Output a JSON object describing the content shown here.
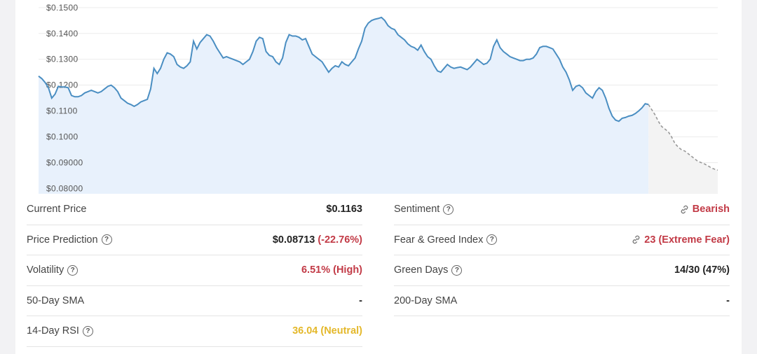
{
  "chart_data": {
    "type": "line",
    "y_ticks": [
      "$0.1500",
      "$0.1400",
      "$0.1300",
      "$0.1200",
      "$0.1100",
      "$0.1000",
      "$0.09000",
      "$0.08000"
    ],
    "ylim": [
      0.0785,
      0.1505
    ],
    "series": [
      {
        "style": "solid",
        "color": "#4a8ec2",
        "values": [
          0.1235,
          0.1225,
          0.121,
          0.119,
          0.115,
          0.1165,
          0.1195,
          0.1193,
          0.1193,
          0.119,
          0.116,
          0.1155,
          0.1155,
          0.116,
          0.117,
          0.1175,
          0.118,
          0.1175,
          0.117,
          0.1175,
          0.1185,
          0.1195,
          0.12,
          0.119,
          0.1175,
          0.115,
          0.114,
          0.113,
          0.1125,
          0.1118,
          0.1125,
          0.1135,
          0.114,
          0.1145,
          0.1185,
          0.1265,
          0.1245,
          0.1265,
          0.13,
          0.1325,
          0.132,
          0.131,
          0.128,
          0.127,
          0.1265,
          0.1275,
          0.129,
          0.137,
          0.134,
          0.1365,
          0.138,
          0.1395,
          0.139,
          0.137,
          0.1345,
          0.1325,
          0.1305,
          0.131,
          0.1305,
          0.13,
          0.1295,
          0.129,
          0.128,
          0.129,
          0.13,
          0.133,
          0.137,
          0.1385,
          0.138,
          0.133,
          0.1315,
          0.131,
          0.129,
          0.128,
          0.1305,
          0.1365,
          0.1395,
          0.139,
          0.139,
          0.1385,
          0.1375,
          0.138,
          0.135,
          0.132,
          0.131,
          0.13,
          0.129,
          0.127,
          0.125,
          0.1265,
          0.1275,
          0.127,
          0.129,
          0.128,
          0.1275,
          0.129,
          0.1305,
          0.134,
          0.137,
          0.142,
          0.144,
          0.145,
          0.1455,
          0.1458,
          0.1462,
          0.145,
          0.143,
          0.142,
          0.1415,
          0.1395,
          0.1385,
          0.1375,
          0.136,
          0.135,
          0.1345,
          0.1335,
          0.1355,
          0.133,
          0.131,
          0.13,
          0.1275,
          0.1255,
          0.125,
          0.1265,
          0.128,
          0.127,
          0.1265,
          0.1268,
          0.127,
          0.1265,
          0.126,
          0.127,
          0.1285,
          0.13,
          0.129,
          0.128,
          0.1285,
          0.13,
          0.135,
          0.1375,
          0.1345,
          0.133,
          0.132,
          0.131,
          0.1305,
          0.13,
          0.1295,
          0.1295,
          0.13,
          0.13,
          0.1305,
          0.132,
          0.1345,
          0.135,
          0.135,
          0.1345,
          0.134,
          0.132,
          0.13,
          0.127,
          0.125,
          0.122,
          0.118,
          0.1195,
          0.12,
          0.119,
          0.117,
          0.116,
          0.115,
          0.1175,
          0.119,
          0.118,
          0.115,
          0.111,
          0.108,
          0.1065,
          0.106,
          0.1072,
          0.1075,
          0.108,
          0.1083,
          0.109,
          0.11,
          0.1112,
          0.1128,
          0.1125
        ]
      },
      {
        "style": "dashed",
        "color": "#999999",
        "values": [
          0.1125,
          0.1105,
          0.1085,
          0.106,
          0.104,
          0.103,
          0.102,
          0.1,
          0.0975,
          0.096,
          0.095,
          0.0945,
          0.0935,
          0.0925,
          0.0915,
          0.0905,
          0.09,
          0.0895,
          0.0888,
          0.088,
          0.0875,
          0.0871
        ]
      }
    ]
  },
  "stats": {
    "left": [
      {
        "label": "Current Price",
        "value": "$0.1163",
        "help": false,
        "tone": ""
      },
      {
        "label": "Price Prediction",
        "value": "$0.08713",
        "extra": "(-22.76%)",
        "help": true,
        "tone": ""
      },
      {
        "label": "Volatility",
        "value": "6.51% (High)",
        "help": true,
        "tone": "red"
      },
      {
        "label": "50-Day SMA",
        "value": "-",
        "help": false,
        "tone": ""
      },
      {
        "label": "14-Day RSI",
        "value": "36.04 (Neutral)",
        "help": true,
        "tone": "yellow"
      }
    ],
    "right": [
      {
        "label": "Sentiment",
        "value": "Bearish",
        "help": true,
        "tone": "red",
        "link": true
      },
      {
        "label": "Fear & Greed Index",
        "value": "23 (Extreme Fear)",
        "help": true,
        "tone": "red",
        "link": true
      },
      {
        "label": "Green Days",
        "value": "14/30 (47%)",
        "help": true,
        "tone": ""
      },
      {
        "label": "200-Day SMA",
        "value": "-",
        "help": false,
        "tone": ""
      }
    ]
  },
  "help_glyph": "?"
}
